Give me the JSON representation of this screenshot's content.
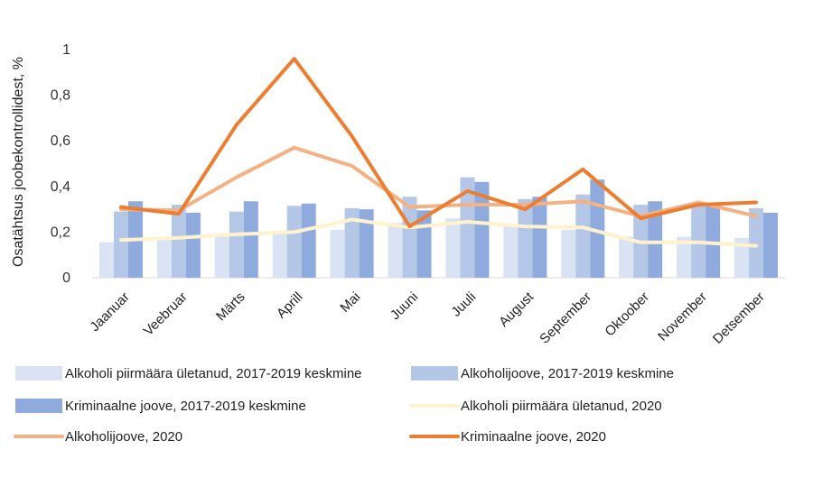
{
  "chart_data": {
    "type": "bar",
    "ylabel": "Osatähtsus joobekontrollidest, %",
    "ylim": [
      0,
      1
    ],
    "yticks": [
      0,
      0.2,
      0.4,
      0.6,
      0.8,
      1
    ],
    "ytick_labels": [
      "0",
      "0,2",
      "0,4",
      "0,6",
      "0,8",
      "1"
    ],
    "grid": false,
    "legend_position": "bottom",
    "categories": [
      "Jaanuar",
      "Veebruar",
      "Märts",
      "Aprill",
      "Mai",
      "Juuni",
      "Juuli",
      "August",
      "September",
      "Oktoober",
      "November",
      "Detsember"
    ],
    "series": [
      {
        "name": "Alkoholi piirmäära ületanud, 2017-2019 keskmine",
        "kind": "bar",
        "color": "#dae3f3",
        "values": [
          0.155,
          0.17,
          0.18,
          0.2,
          0.21,
          0.24,
          0.26,
          0.23,
          0.21,
          0.18,
          0.18,
          0.175
        ]
      },
      {
        "name": "Alkoholijoove, 2017-2019 keskmine",
        "kind": "bar",
        "color": "#b4c7e7",
        "values": [
          0.29,
          0.32,
          0.29,
          0.315,
          0.305,
          0.355,
          0.44,
          0.345,
          0.365,
          0.32,
          0.325,
          0.305
        ]
      },
      {
        "name": "Kriminaalne joove, 2017-2019 keskmine",
        "kind": "bar",
        "color": "#8faadc",
        "values": [
          0.335,
          0.285,
          0.335,
          0.325,
          0.3,
          0.295,
          0.42,
          0.355,
          0.43,
          0.335,
          0.315,
          0.285
        ]
      },
      {
        "name": "Alkoholi piirmäära ületanud, 2020",
        "kind": "line",
        "color": "#fff2cc",
        "values": [
          0.165,
          0.175,
          0.19,
          0.2,
          0.255,
          0.22,
          0.245,
          0.225,
          0.22,
          0.155,
          0.155,
          0.14
        ]
      },
      {
        "name": "Alkoholijoove, 2020",
        "kind": "line",
        "color": "#f4b183",
        "values": [
          0.3,
          0.295,
          0.44,
          0.57,
          0.49,
          0.31,
          0.32,
          0.32,
          0.335,
          0.27,
          0.33,
          0.27
        ]
      },
      {
        "name": "Kriminaalne joove, 2020",
        "kind": "line",
        "color": "#ed7d31",
        "values": [
          0.31,
          0.28,
          0.67,
          0.96,
          0.62,
          0.225,
          0.38,
          0.3,
          0.475,
          0.26,
          0.32,
          0.33
        ]
      }
    ]
  }
}
